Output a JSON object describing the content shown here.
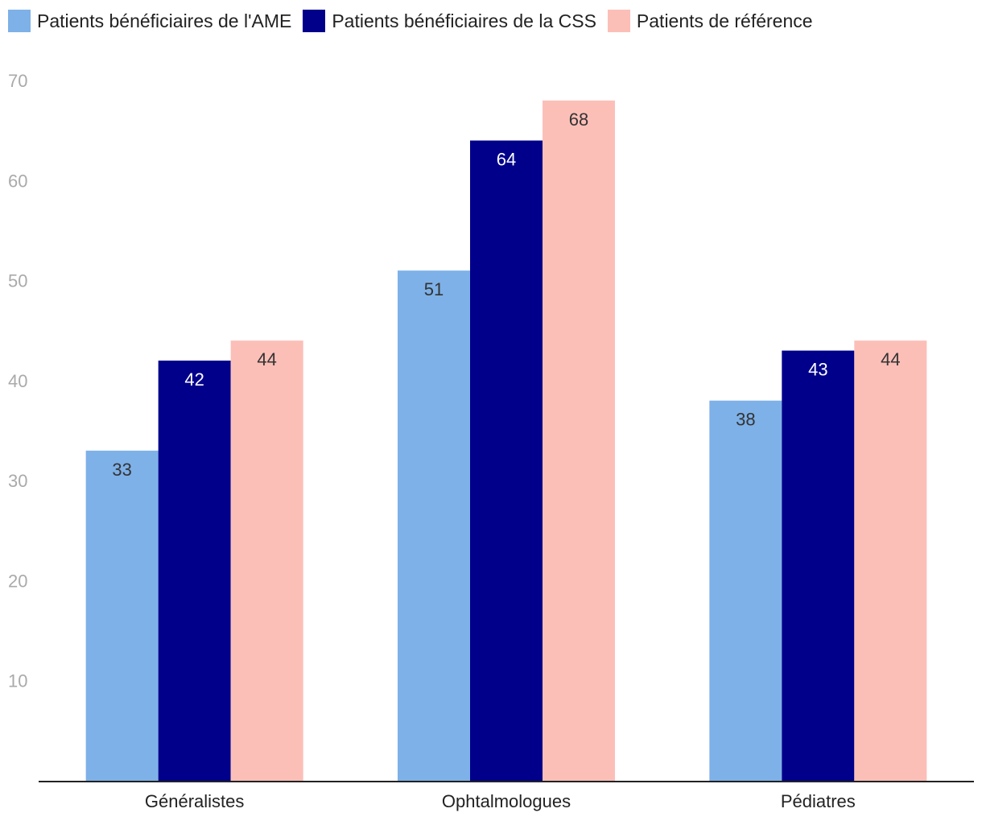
{
  "chart_data": {
    "type": "bar",
    "title": "",
    "xlabel": "",
    "ylabel": "",
    "ylim": [
      0,
      70
    ],
    "yticks": [
      10,
      20,
      30,
      40,
      50,
      60,
      70
    ],
    "grid": false,
    "legend_position": "top-left",
    "categories": [
      "Généralistes",
      "Ophtalmologues",
      "Pédiatres"
    ],
    "series": [
      {
        "name": "Patients bénéficiaires de l'AME",
        "color": "#7eb1e8",
        "label_color": "#333333",
        "values": [
          33,
          51,
          38
        ]
      },
      {
        "name": "Patients bénéficiaires de la CSS",
        "color": "#00008b",
        "label_color": "#ffffff",
        "values": [
          42,
          64,
          43
        ]
      },
      {
        "name": "Patients de référence",
        "color": "#fcbfb8",
        "label_color": "#333333",
        "values": [
          44,
          68,
          44
        ]
      }
    ]
  }
}
